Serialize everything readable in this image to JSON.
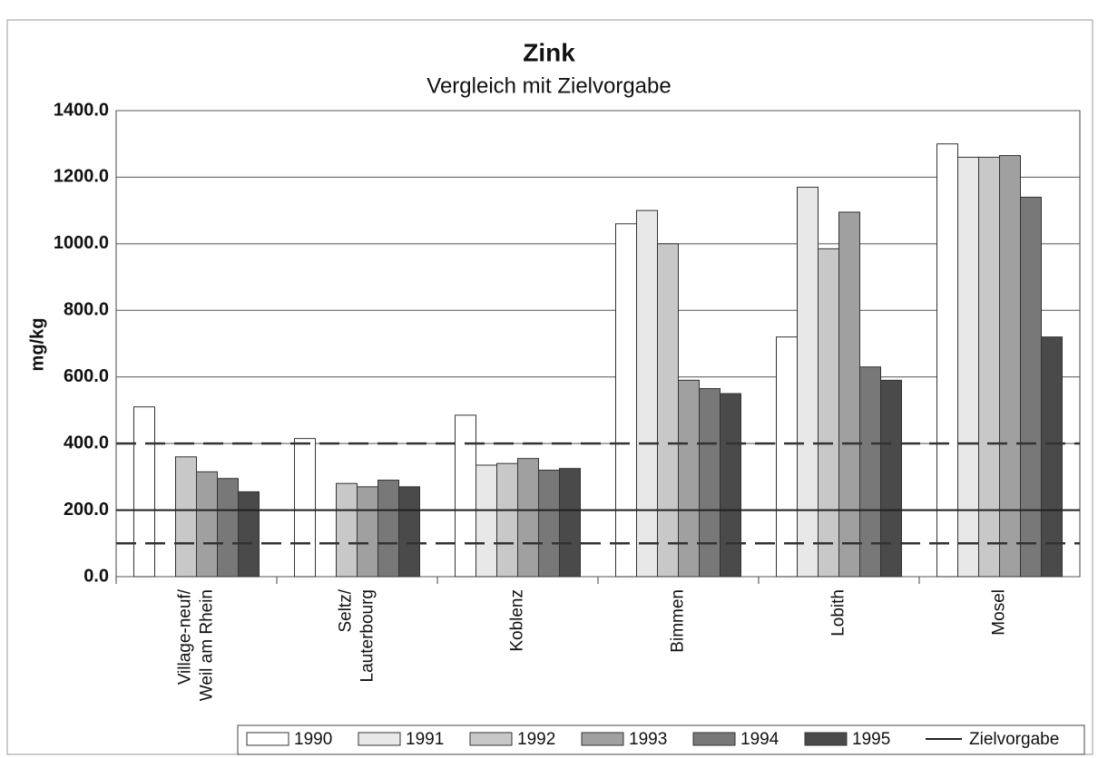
{
  "chart_data": {
    "type": "bar",
    "title": "Zink",
    "subtitle": "Vergleich mit Zielvorgabe",
    "y_label": "mg/kg",
    "categories": [
      [
        "Village-neuf/",
        "Weil am Rhein"
      ],
      [
        "Seltz/",
        "Lauterbourg"
      ],
      [
        "Koblenz"
      ],
      [
        "Bimmen"
      ],
      [
        "Lobith"
      ],
      [
        "Mosel"
      ]
    ],
    "series": [
      {
        "name": "1990",
        "color": "#ffffff",
        "values": [
          510,
          415,
          485,
          1060,
          720,
          1300
        ]
      },
      {
        "name": "1991",
        "color": "#e8e8e8",
        "values": [
          null,
          null,
          335,
          1100,
          1170,
          1260
        ]
      },
      {
        "name": "1992",
        "color": "#c8c8c8",
        "values": [
          360,
          280,
          340,
          1000,
          985,
          1260
        ]
      },
      {
        "name": "1993",
        "color": "#a0a0a0",
        "values": [
          315,
          270,
          355,
          590,
          1095,
          1265
        ]
      },
      {
        "name": "1994",
        "color": "#787878",
        "values": [
          295,
          290,
          320,
          565,
          630,
          1140
        ]
      },
      {
        "name": "1995",
        "color": "#4a4a4a",
        "values": [
          255,
          270,
          325,
          550,
          590,
          720
        ]
      }
    ],
    "target": {
      "name": "Zielvorgabe",
      "value": 200,
      "color": "#222222"
    },
    "dashed_lines": [
      400,
      100
    ],
    "ylim": [
      0,
      1400
    ],
    "yticks": [
      {
        "value": 0,
        "label": "0.0"
      },
      {
        "value": 200,
        "label": "200.0"
      },
      {
        "value": 400,
        "label": "400.0"
      },
      {
        "value": 600,
        "label": "600.0"
      },
      {
        "value": 800,
        "label": "800.0"
      },
      {
        "value": 1000,
        "label": "1000.0"
      },
      {
        "value": 1200,
        "label": "1200.0"
      },
      {
        "value": 1400,
        "label": "1400.0"
      }
    ],
    "grid": true
  }
}
